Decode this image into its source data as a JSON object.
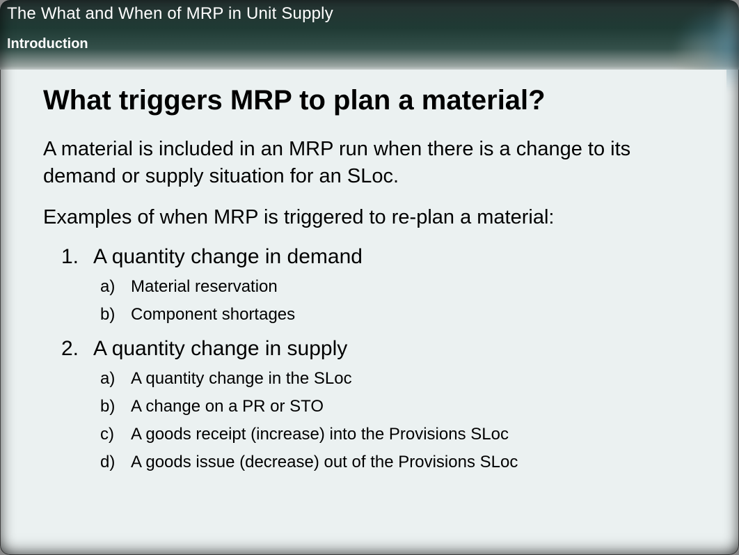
{
  "colors": {
    "page_bg": "#ebf1f1",
    "header_gradient_top": "#1f2a2a",
    "header_gradient_bottom": "#c5ccca",
    "text_primary": "#000000",
    "text_on_header": "#ffffff"
  },
  "typography": {
    "course_title_pt": 18,
    "section_title_pt": 15,
    "page_heading_pt": 30,
    "intro_pt": 22,
    "numbered_pt": 22,
    "alpha_pt": 18,
    "font_family": "Arial"
  },
  "header": {
    "course_title": "The What and When of MRP in Unit Supply",
    "section_title": "Introduction"
  },
  "content": {
    "heading": "What triggers MRP to plan a material?",
    "intro_paragraph": "A material is included in an MRP run when there is a change to its demand or supply situation for an SLoc.",
    "examples_lead": "Examples of when MRP is triggered to re-plan a material:",
    "items": [
      {
        "marker": "1.",
        "text": "A quantity change in demand",
        "subitems": [
          {
            "marker": "a)",
            "text": "Material reservation"
          },
          {
            "marker": "b)",
            "text": "Component shortages"
          }
        ]
      },
      {
        "marker": "2.",
        "text": "A quantity change in supply",
        "subitems": [
          {
            "marker": "a)",
            "text": "A quantity change in the SLoc"
          },
          {
            "marker": "b)",
            "text": "A change on a PR or STO"
          },
          {
            "marker": "c)",
            "text": "A goods receipt (increase) into the Provisions SLoc"
          },
          {
            "marker": "d)",
            "text": "A goods issue (decrease) out of the Provisions SLoc"
          }
        ]
      }
    ]
  }
}
